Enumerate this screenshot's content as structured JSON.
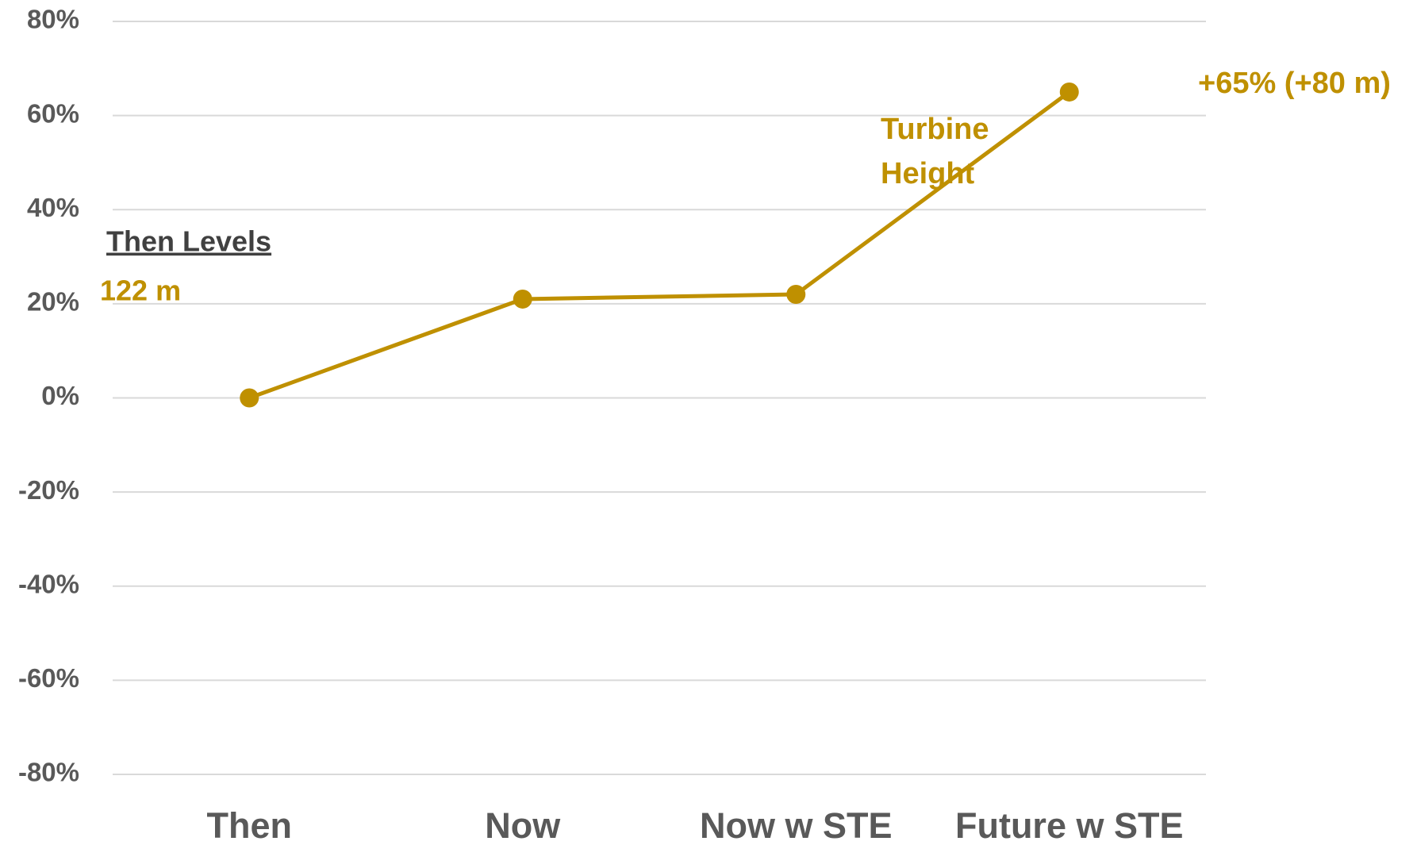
{
  "chart_data": {
    "type": "line",
    "categories": [
      "Then",
      "Now",
      "Now w STE",
      "Future w STE"
    ],
    "series": [
      {
        "name": "Turbine Height",
        "color": "#bf9000",
        "values": [
          0,
          21,
          22,
          65
        ]
      }
    ],
    "ylim": [
      -80,
      80
    ],
    "yticks": [
      {
        "value": -80,
        "label": "-80%"
      },
      {
        "value": -60,
        "label": "-60%"
      },
      {
        "value": -40,
        "label": "-40%"
      },
      {
        "value": -20,
        "label": "-20%"
      },
      {
        "value": 0,
        "label": "0%"
      },
      {
        "value": 20,
        "label": "20%"
      },
      {
        "value": 40,
        "label": "40%"
      },
      {
        "value": 60,
        "label": "60%"
      },
      {
        "value": 80,
        "label": "80%"
      }
    ],
    "grid": true,
    "annotations": {
      "reference_title": "Then Levels",
      "reference_value": "122 m",
      "end_label": "+65% (+80 m)"
    }
  }
}
